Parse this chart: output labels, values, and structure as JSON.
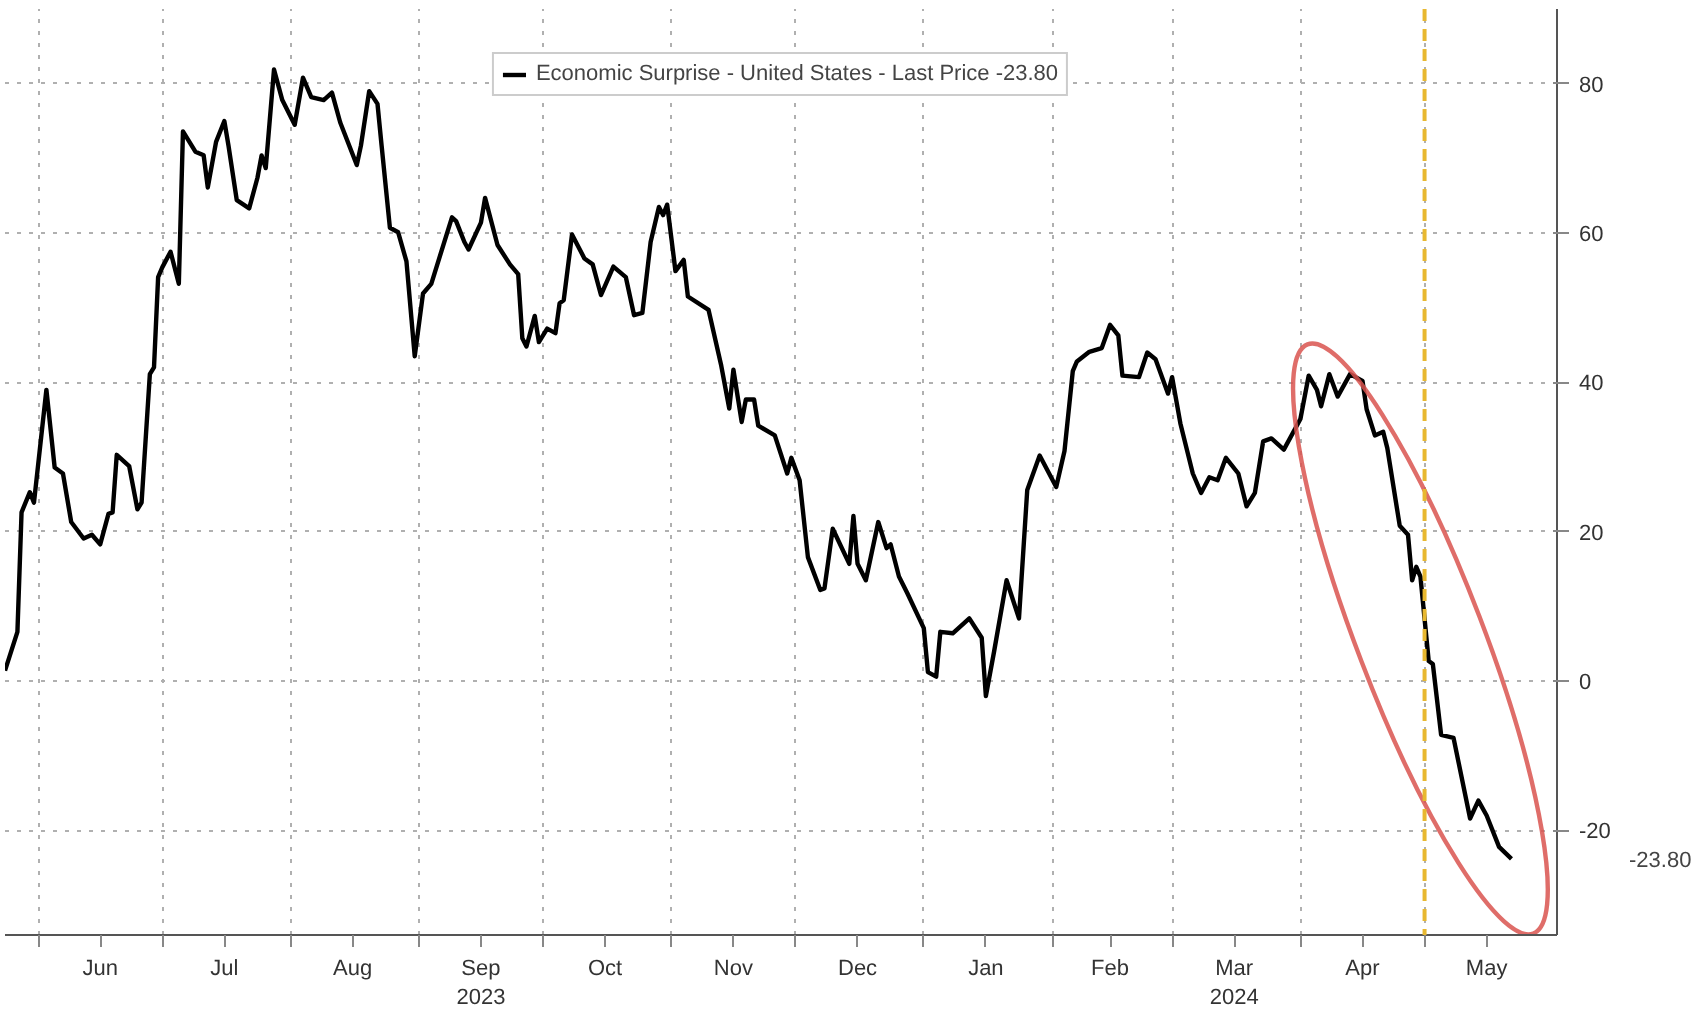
{
  "chart_data": {
    "type": "line",
    "ylim": [
      -34,
      90
    ],
    "yticks": [
      -20,
      0,
      20,
      40,
      60,
      80
    ],
    "xlim": [
      "2023-05-24",
      "2024-06-02"
    ],
    "xticks": [
      {
        "value": "2023-06-01",
        "label": null
      },
      {
        "value": "2023-07-01",
        "label": null
      },
      {
        "value": "2023-08-01",
        "label": null
      },
      {
        "value": "2023-09-01",
        "label": null
      },
      {
        "value": "2023-10-01",
        "label": null
      },
      {
        "value": "2023-11-01",
        "label": null
      },
      {
        "value": "2023-12-01",
        "label": null
      },
      {
        "value": "2024-01-01",
        "label": null
      },
      {
        "value": "2024-02-01",
        "label": null
      },
      {
        "value": "2024-03-01",
        "label": null
      },
      {
        "value": "2024-04-01",
        "label": null
      },
      {
        "value": "2024-05-01",
        "label": null
      },
      {
        "value": "2023-06-16",
        "label": "Jun"
      },
      {
        "value": "2023-07-16",
        "label": "Jul"
      },
      {
        "value": "2023-08-16",
        "label": "Aug"
      },
      {
        "value": "2023-09-16",
        "label": "Sep\n2023"
      },
      {
        "value": "2023-10-16",
        "label": "Oct"
      },
      {
        "value": "2023-11-16",
        "label": "Nov"
      },
      {
        "value": "2023-12-16",
        "label": "Dec"
      },
      {
        "value": "2024-01-16",
        "label": "Jan"
      },
      {
        "value": "2024-02-15",
        "label": "Feb"
      },
      {
        "value": "2024-03-16",
        "label": "Mar\n2024"
      },
      {
        "value": "2024-04-16",
        "label": "Apr"
      },
      {
        "value": "2024-05-16",
        "label": "May"
      }
    ],
    "grid": true,
    "legend": "top",
    "line_style": "solid",
    "marker": "none",
    "series": [
      {
        "name": "Economic Surprise - United States - Last Price -23.80",
        "color": "#000000",
        "x": [
          "2023-05-24",
          "2023-05-27",
          "2023-05-28",
          "2023-05-30",
          "2023-05-31",
          "2023-06-03",
          "2023-06-05",
          "2023-06-07",
          "2023-06-09",
          "2023-06-12",
          "2023-06-14",
          "2023-06-16",
          "2023-06-18",
          "2023-06-19",
          "2023-06-20",
          "2023-06-23",
          "2023-06-25",
          "2023-06-26",
          "2023-06-28",
          "2023-06-29",
          "2023-06-30",
          "2023-07-01",
          "2023-07-03",
          "2023-07-05",
          "2023-07-06",
          "2023-07-09",
          "2023-07-11",
          "2023-07-12",
          "2023-07-14",
          "2023-07-16",
          "2023-07-17",
          "2023-07-19",
          "2023-07-22",
          "2023-07-24",
          "2023-07-25",
          "2023-07-26",
          "2023-07-28",
          "2023-07-30",
          "2023-08-02",
          "2023-08-04",
          "2023-08-06",
          "2023-08-09",
          "2023-08-11",
          "2023-08-13",
          "2023-08-17",
          "2023-08-18",
          "2023-08-20",
          "2023-08-22",
          "2023-08-23",
          "2023-08-25",
          "2023-08-27",
          "2023-08-29",
          "2023-08-31",
          "2023-09-02",
          "2023-09-04",
          "2023-09-09",
          "2023-09-10",
          "2023-09-12",
          "2023-09-13",
          "2023-09-16",
          "2023-09-17",
          "2023-09-20",
          "2023-09-23",
          "2023-09-25",
          "2023-09-26",
          "2023-09-27",
          "2023-09-29",
          "2023-09-30",
          "2023-10-02",
          "2023-10-04",
          "2023-10-05",
          "2023-10-06",
          "2023-10-08",
          "2023-10-11",
          "2023-10-13",
          "2023-10-15",
          "2023-10-18",
          "2023-10-21",
          "2023-10-23",
          "2023-10-25",
          "2023-10-27",
          "2023-10-29",
          "2023-10-30",
          "2023-10-31",
          "2023-11-02",
          "2023-11-04",
          "2023-11-05",
          "2023-11-10",
          "2023-11-13",
          "2023-11-15",
          "2023-11-16",
          "2023-11-18",
          "2023-11-19",
          "2023-11-21",
          "2023-11-22",
          "2023-11-26",
          "2023-11-29",
          "2023-11-30",
          "2023-12-02",
          "2023-12-04",
          "2023-12-07",
          "2023-12-08",
          "2023-12-10",
          "2023-12-14",
          "2023-12-15",
          "2023-12-16",
          "2023-12-18",
          "2023-12-21",
          "2023-12-23",
          "2023-12-24",
          "2023-12-26",
          "2023-12-28",
          "2024-01-01",
          "2024-01-02",
          "2024-01-04",
          "2024-01-05",
          "2024-01-08",
          "2024-01-12",
          "2024-01-15",
          "2024-01-16",
          "2024-01-18",
          "2024-01-21",
          "2024-01-24",
          "2024-01-26",
          "2024-01-29",
          "2024-02-02",
          "2024-02-04",
          "2024-02-06",
          "2024-02-07",
          "2024-02-10",
          "2024-02-13",
          "2024-02-15",
          "2024-02-17",
          "2024-02-18",
          "2024-02-22",
          "2024-02-24",
          "2024-02-26",
          "2024-02-29",
          "2024-03-01",
          "2024-03-03",
          "2024-03-06",
          "2024-03-08",
          "2024-03-10",
          "2024-03-12",
          "2024-03-14",
          "2024-03-17",
          "2024-03-19",
          "2024-03-21",
          "2024-03-23",
          "2024-03-25",
          "2024-03-28",
          "2024-04-01",
          "2024-04-03",
          "2024-04-05",
          "2024-04-06",
          "2024-04-08",
          "2024-04-10",
          "2024-04-13",
          "2024-04-16",
          "2024-04-17",
          "2024-04-19",
          "2024-04-21",
          "2024-04-22",
          "2024-04-25",
          "2024-04-27",
          "2024-04-28",
          "2024-04-29",
          "2024-04-30",
          "2024-05-02",
          "2024-05-03",
          "2024-05-05",
          "2024-05-08",
          "2024-05-12",
          "2024-05-14",
          "2024-05-16",
          "2024-05-19",
          "2024-05-22"
        ],
        "values": [
          1.4,
          6.6,
          22.6,
          25.3,
          23.9,
          39,
          28.6,
          27.8,
          21.3,
          19.1,
          19.6,
          18.3,
          22.4,
          22.6,
          30.3,
          28.8,
          23,
          23.9,
          41.1,
          42,
          54.1,
          55.4,
          57.5,
          53.2,
          73.6,
          70.9,
          70.4,
          66.1,
          72.2,
          75,
          71.7,
          64.4,
          63.3,
          67.4,
          70.4,
          68.7,
          81.9,
          77.8,
          74.5,
          80.8,
          78.2,
          77.8,
          78.8,
          74.8,
          69.1,
          71.7,
          79,
          77.3,
          71.7,
          60.7,
          60.1,
          56.2,
          43.5,
          51.9,
          53.2,
          62.1,
          61.6,
          58.8,
          57.8,
          61.4,
          64.7,
          58.4,
          55.8,
          54.5,
          45.9,
          44.8,
          48.9,
          45.4,
          47.2,
          46.6,
          50.6,
          51,
          59.8,
          56.6,
          55.8,
          51.7,
          55.5,
          54.1,
          49,
          49.3,
          58.8,
          63.5,
          62.4,
          63.8,
          54.9,
          56.4,
          51.5,
          49.7,
          42.4,
          36.5,
          41.7,
          34.7,
          37.7,
          37.7,
          34.2,
          32.9,
          27.8,
          29.9,
          26.9,
          16.6,
          12.2,
          12.4,
          20.4,
          15.7,
          22.1,
          15.7,
          13.5,
          21.3,
          17.8,
          18.3,
          14,
          11.8,
          7.1,
          1.2,
          0.6,
          6.6,
          6.4,
          8.4,
          5.8,
          -2,
          4,
          13.5,
          8.4,
          25.6,
          30.2,
          26,
          30.8,
          41.5,
          42.8,
          44.1,
          44.6,
          47.7,
          46.3,
          40.9,
          40.7,
          44,
          43.1,
          38.5,
          40.7,
          34.5,
          27.8,
          25.2,
          27.3,
          26.9,
          29.9,
          27.8,
          23.4,
          25.2,
          32.1,
          32.5,
          31,
          35.1,
          40.9,
          39,
          36.8,
          41.1,
          38.1,
          41.1,
          40.2,
          36.4,
          32.9,
          33.4,
          31.2,
          20.8,
          19.6,
          13.5,
          15.3,
          14,
          2.7,
          2.3,
          -7.2,
          -7.6,
          -18.4,
          -16,
          -18,
          -22.2,
          -23.8
        ]
      }
    ],
    "ref_lines": [
      {
        "axis": "x",
        "value": "2024-05-01",
        "color": "#e8b830",
        "line_style": "dashed"
      }
    ],
    "annotations": [
      "-23.80"
    ]
  }
}
